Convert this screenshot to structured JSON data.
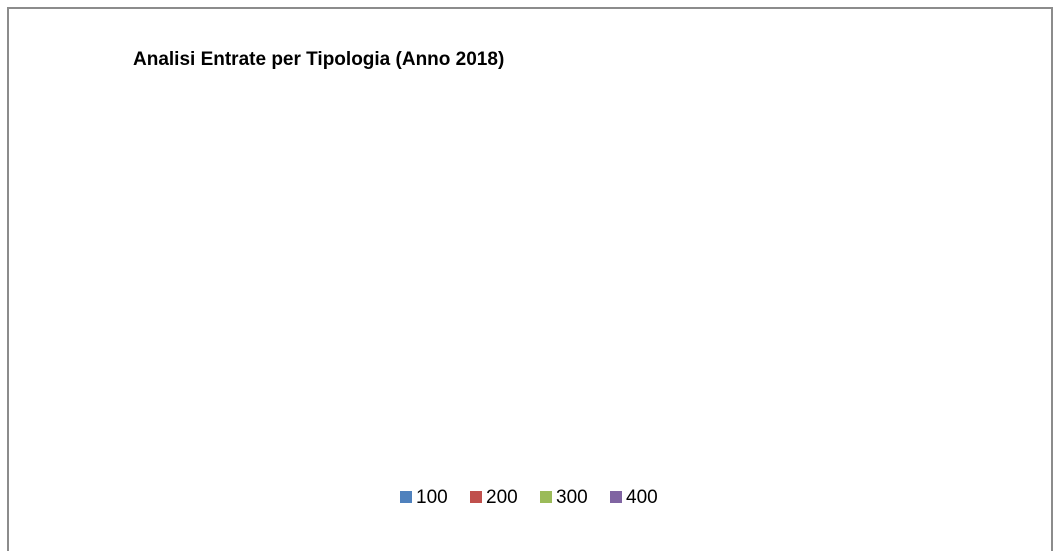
{
  "chart_data": {
    "type": "pie",
    "title": "Analisi Entrate per Tipologia (Anno 2018)",
    "categories": [
      "100",
      "200",
      "300",
      "400"
    ],
    "values": [
      0,
      0,
      0,
      0
    ],
    "colors": [
      "#4f81bd",
      "#c0504d",
      "#9bbb59",
      "#8064a2"
    ],
    "legend": "bottom"
  }
}
